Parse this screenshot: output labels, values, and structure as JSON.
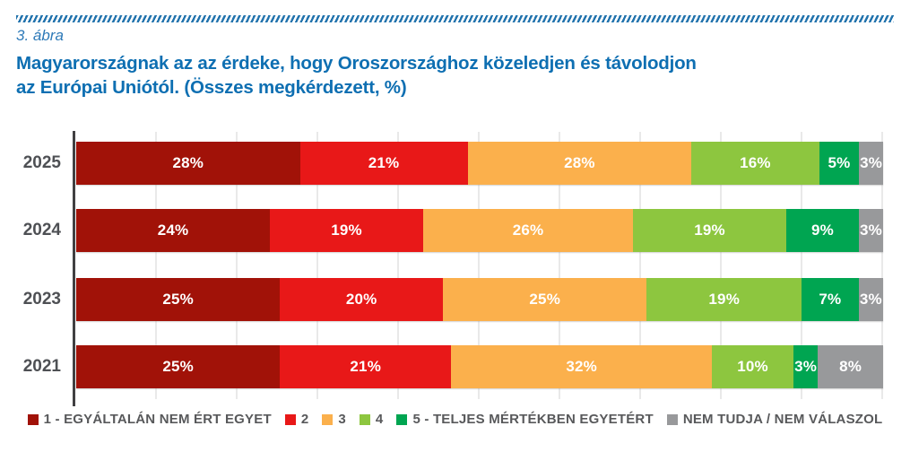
{
  "figure_label": "3. ábra",
  "title_line1": "Magyarországnak az az érdeke, hogy Oroszországhoz közeledjen és távolodjon",
  "title_line2": "az Európai Uniótól. (Összes megkérdezett, %)",
  "chart_data": {
    "type": "bar",
    "orientation": "horizontal-stacked",
    "title": "Magyarországnak az az érdeke, hogy Oroszországhoz közeledjen és távolodjon az Európai Uniótól. (Összes megkérdezett, %)",
    "categories": [
      "2025",
      "2024",
      "2023",
      "2021"
    ],
    "series": [
      {
        "name": "1 - EGYÁLTALÁN NEM ÉRT EGYET",
        "color": "#a11208",
        "values": [
          28,
          24,
          25,
          25
        ]
      },
      {
        "name": "2",
        "color": "#e81818",
        "values": [
          21,
          19,
          20,
          21
        ]
      },
      {
        "name": "3",
        "color": "#fbb04c",
        "values": [
          28,
          26,
          25,
          32
        ]
      },
      {
        "name": "4",
        "color": "#8dc63f",
        "values": [
          16,
          19,
          19,
          10
        ]
      },
      {
        "name": "5 - TELJES MÉRTÉKBEN EGYETÉRT",
        "color": "#00a551",
        "values": [
          5,
          9,
          7,
          3
        ]
      },
      {
        "name": "NEM TUDJA / NEM VÁLASZOL",
        "color": "#98999b",
        "values": [
          3,
          3,
          3,
          8
        ]
      }
    ],
    "value_suffix": "%",
    "xlim": [
      0,
      100
    ],
    "grid": "vertical gridlines every 10%",
    "legend_position": "bottom"
  },
  "colors": {
    "title_blue": "#0e6fb2",
    "figure_label_blue": "#2e7ab8",
    "year_label": "#4e5054",
    "legend_text": "#58595b",
    "axis_line": "#414042",
    "gridline": "#e9e9e9"
  }
}
